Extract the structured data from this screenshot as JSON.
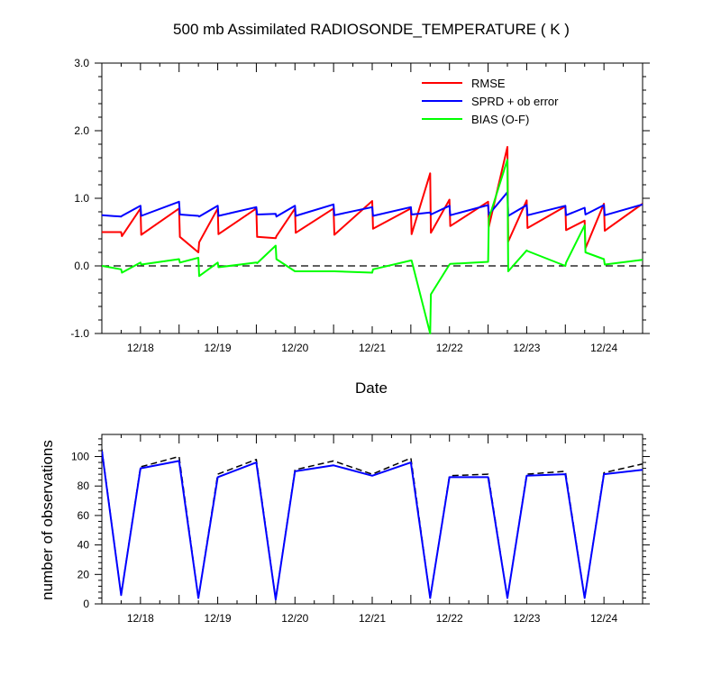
{
  "title": "500 mb Assimilated RADIOSONDE_TEMPERATURE ( K )",
  "colors": {
    "rmse": "#ff0000",
    "sprd": "#0000ff",
    "bias": "#00ff00",
    "count_used": "#0000ff",
    "count_total": "#000000"
  },
  "chart_data": [
    {
      "type": "line",
      "title": "500 mb Assimilated RADIOSONDE_TEMPERATURE ( K )",
      "xlabel": "Date",
      "ylabel": "",
      "ylim": [
        -1.0,
        3.0
      ],
      "xlim": [
        17.5,
        24.5
      ],
      "x_ticks": [
        18,
        19,
        20,
        21,
        22,
        23,
        24
      ],
      "x_ticklabels": [
        "12/18",
        "12/19",
        "12/20",
        "12/21",
        "12/22",
        "12/23",
        "12/24"
      ],
      "y_ticks": [
        -1.0,
        0.0,
        1.0,
        2.0,
        3.0
      ],
      "y_ticklabels": [
        "-1.0",
        "0.0",
        "1.0",
        "2.0",
        "3.0"
      ],
      "zero_line": "dashed",
      "legend_position": "top-right",
      "series": [
        {
          "name": "RMSE",
          "color_key": "rmse",
          "x": [
            17.5,
            17.75,
            17.76,
            18.0,
            18.01,
            18.5,
            18.51,
            18.75,
            18.76,
            19.0,
            19.01,
            19.5,
            19.51,
            19.75,
            19.76,
            20.0,
            20.01,
            20.5,
            20.51,
            21.0,
            21.01,
            21.5,
            21.51,
            21.75,
            21.76,
            22.0,
            22.01,
            22.5,
            22.51,
            22.75,
            22.76,
            23.0,
            23.01,
            23.5,
            23.51,
            23.75,
            23.76,
            24.0,
            24.01,
            24.5
          ],
          "y": [
            0.5,
            0.5,
            0.44,
            0.85,
            0.46,
            0.85,
            0.43,
            0.2,
            0.35,
            0.85,
            0.47,
            0.85,
            0.43,
            0.41,
            0.44,
            0.85,
            0.49,
            0.85,
            0.46,
            0.96,
            0.55,
            0.85,
            0.47,
            1.37,
            0.49,
            0.98,
            0.59,
            0.95,
            0.58,
            1.76,
            0.36,
            0.97,
            0.56,
            0.88,
            0.53,
            0.67,
            0.26,
            0.92,
            0.52,
            0.92
          ]
        },
        {
          "name": "SPRD + ob error",
          "color_key": "sprd",
          "x": [
            17.5,
            17.75,
            17.76,
            18.0,
            18.01,
            18.5,
            18.51,
            18.75,
            18.76,
            19.0,
            19.01,
            19.5,
            19.51,
            19.75,
            19.76,
            20.0,
            20.01,
            20.5,
            20.51,
            21.0,
            21.01,
            21.5,
            21.51,
            21.75,
            21.76,
            22.0,
            22.01,
            22.5,
            22.51,
            22.75,
            22.76,
            23.0,
            23.01,
            23.5,
            23.51,
            23.75,
            23.76,
            24.0,
            24.01,
            24.5
          ],
          "y": [
            0.75,
            0.73,
            0.74,
            0.89,
            0.74,
            0.95,
            0.76,
            0.74,
            0.73,
            0.89,
            0.74,
            0.87,
            0.76,
            0.77,
            0.73,
            0.89,
            0.74,
            0.91,
            0.75,
            0.87,
            0.74,
            0.87,
            0.76,
            0.79,
            0.76,
            0.89,
            0.75,
            0.9,
            0.76,
            1.09,
            0.74,
            0.9,
            0.75,
            0.89,
            0.75,
            0.86,
            0.76,
            0.9,
            0.75,
            0.91
          ]
        },
        {
          "name": "BIAS (O-F)",
          "color_key": "bias",
          "x": [
            17.5,
            17.75,
            17.76,
            18.0,
            18.01,
            18.5,
            18.51,
            18.75,
            18.76,
            19.0,
            19.01,
            19.5,
            19.51,
            19.75,
            19.76,
            20.0,
            20.01,
            20.5,
            20.51,
            21.0,
            21.01,
            21.5,
            21.51,
            21.75,
            21.76,
            22.0,
            22.01,
            22.5,
            22.51,
            22.75,
            22.76,
            23.0,
            23.01,
            23.5,
            23.51,
            23.75,
            23.76,
            24.0,
            24.01,
            24.5
          ],
          "y": [
            0.0,
            -0.05,
            -0.1,
            0.05,
            0.02,
            0.1,
            0.05,
            0.12,
            -0.15,
            0.05,
            -0.02,
            0.05,
            0.04,
            0.3,
            0.1,
            -0.08,
            -0.08,
            -0.08,
            -0.08,
            -0.1,
            -0.05,
            0.08,
            0.08,
            -1.0,
            -0.42,
            0.02,
            0.03,
            0.06,
            0.7,
            1.57,
            -0.08,
            0.23,
            0.22,
            0.0,
            0.05,
            0.6,
            0.2,
            0.1,
            0.02,
            0.09
          ]
        }
      ]
    },
    {
      "type": "line",
      "title": "",
      "xlabel": "",
      "ylabel": "number of observations",
      "ylim": [
        0,
        115
      ],
      "xlim": [
        17.5,
        24.5
      ],
      "x_ticks": [
        18,
        19,
        20,
        21,
        22,
        23,
        24
      ],
      "x_ticklabels": [
        "12/18",
        "12/19",
        "12/20",
        "12/21",
        "12/22",
        "12/23",
        "12/24"
      ],
      "y_ticks": [
        0,
        20,
        40,
        60,
        80,
        100
      ],
      "y_ticklabels": [
        "0",
        "20",
        "40",
        "60",
        "80",
        "100"
      ],
      "series": [
        {
          "color_key": "count_total",
          "dash": true,
          "x": [
            17.5,
            17.75,
            18.0,
            18.5,
            18.75,
            19.0,
            19.5,
            19.75,
            20.0,
            20.5,
            21.0,
            21.5,
            21.75,
            22.0,
            22.5,
            22.75,
            23.0,
            23.5,
            23.75,
            24.0,
            24.5
          ],
          "y": [
            105,
            6,
            93,
            100,
            4,
            88,
            98,
            3,
            91,
            97,
            88,
            99,
            4,
            87,
            88,
            4,
            88,
            90,
            4,
            89,
            95
          ]
        },
        {
          "color_key": "count_used",
          "dash": false,
          "x": [
            17.5,
            17.75,
            18.0,
            18.5,
            18.75,
            19.0,
            19.5,
            19.75,
            20.0,
            20.5,
            21.0,
            21.5,
            21.75,
            22.0,
            22.5,
            22.75,
            23.0,
            23.5,
            23.75,
            24.0,
            24.5
          ],
          "y": [
            104,
            6,
            92,
            97,
            4,
            86,
            96,
            3,
            90,
            94,
            87,
            96,
            4,
            86,
            86,
            4,
            87,
            88,
            4,
            88,
            91
          ]
        }
      ]
    }
  ]
}
